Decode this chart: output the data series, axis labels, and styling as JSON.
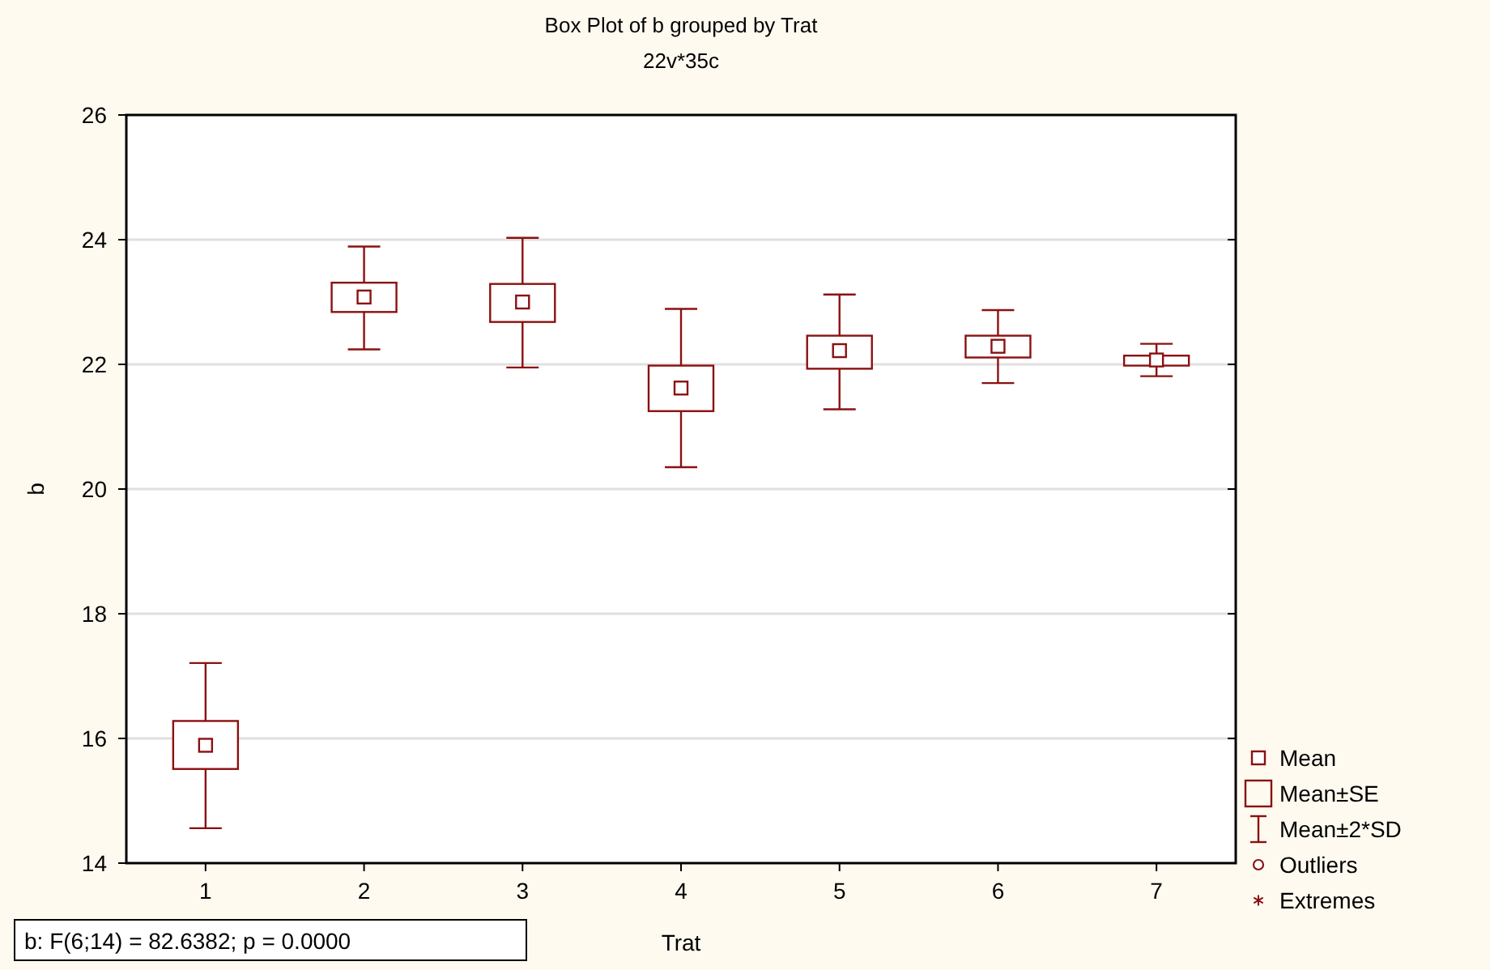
{
  "chart_data": {
    "type": "box",
    "title": "Box Plot of b grouped by  Trat",
    "subtitle": "22v*35c",
    "xlabel": "Trat",
    "ylabel": "b",
    "categories": [
      "1",
      "2",
      "3",
      "4",
      "5",
      "6",
      "7"
    ],
    "ylim": [
      14,
      26
    ],
    "yticks": [
      14,
      16,
      18,
      20,
      22,
      24,
      26
    ],
    "grid": "y",
    "legend": "bottom right",
    "annotations": [
      "b:   F(6;14) = 82.6382; p = 0.0000"
    ],
    "series": [
      {
        "name": "Mean",
        "type": "scatter",
        "color": "#8b1010",
        "marker": "square",
        "values": [
          null,
          null,
          null,
          null,
          null,
          null,
          null
        ]
      },
      {
        "name": "Mean±SE",
        "type": "box",
        "color": "#8b1010",
        "boxes": [
          {
            "low": 14.56,
            "q1": 15.51,
            "median": 15.89,
            "q3": 16.28,
            "high": 17.21
          },
          {
            "low": 22.24,
            "q1": 22.84,
            "median": 23.08,
            "q3": 23.31,
            "high": 23.89
          },
          {
            "low": 21.95,
            "q1": 22.68,
            "median": 23.0,
            "q3": 23.29,
            "high": 24.03
          },
          {
            "low": 20.35,
            "q1": 21.25,
            "median": 21.62,
            "q3": 21.98,
            "high": 22.89
          },
          {
            "low": 21.28,
            "q1": 21.93,
            "median": 22.22,
            "q3": 22.46,
            "high": 23.12
          },
          {
            "low": 21.7,
            "q1": 22.11,
            "median": 22.29,
            "q3": 22.46,
            "high": 22.87
          },
          {
            "low": 21.81,
            "q1": 21.98,
            "median": 22.07,
            "q3": 22.14,
            "high": 22.33
          }
        ]
      },
      {
        "name": "Mean±2*SD",
        "type": "other",
        "color": "#8b1010",
        "values": [
          null,
          null,
          null,
          null,
          null,
          null,
          null
        ]
      },
      {
        "name": "Outliers",
        "type": "scatter",
        "color": "#8b1010",
        "marker": "circle",
        "values": [
          null,
          null,
          null,
          null,
          null,
          null,
          null
        ]
      },
      {
        "name": "Extremes",
        "type": "scatter",
        "color": "#8b1010",
        "marker": "star",
        "values": [
          null,
          null,
          null,
          null,
          null,
          null,
          null
        ]
      }
    ]
  }
}
